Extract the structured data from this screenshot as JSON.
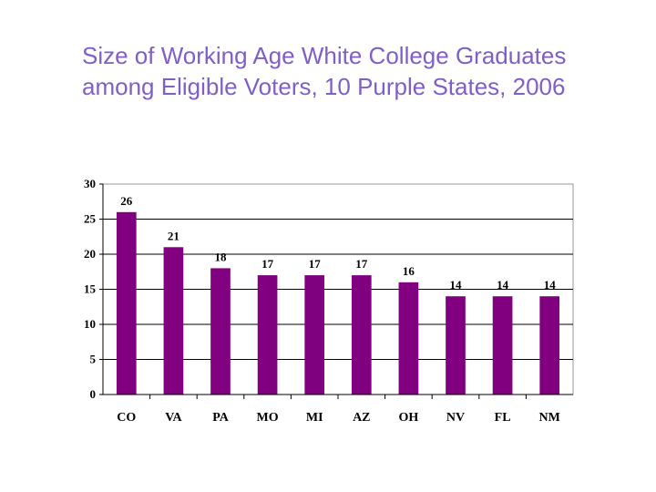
{
  "chart_data": {
    "type": "bar",
    "title_line1": "Size of Working Age White College Graduates",
    "title_line2": "among Eligible Voters, 10 Purple States, 2006",
    "categories": [
      "CO",
      "VA",
      "PA",
      "MO",
      "MI",
      "AZ",
      "OH",
      "NV",
      "FL",
      "NM"
    ],
    "values": [
      26,
      21,
      18,
      17,
      17,
      17,
      16,
      14,
      14,
      14
    ],
    "value_labels": [
      "26",
      "21",
      "18",
      "17",
      "17",
      "17",
      "16",
      "14",
      "14",
      "14"
    ],
    "ylim": [
      0,
      30
    ],
    "yticks": [
      0,
      5,
      10,
      15,
      20,
      25,
      30
    ],
    "ytick_labels": [
      "0",
      "5",
      "10",
      "15",
      "20",
      "25",
      "30"
    ],
    "xlabel": "",
    "ylabel": "",
    "grid": true,
    "bar_color": "#800080"
  }
}
